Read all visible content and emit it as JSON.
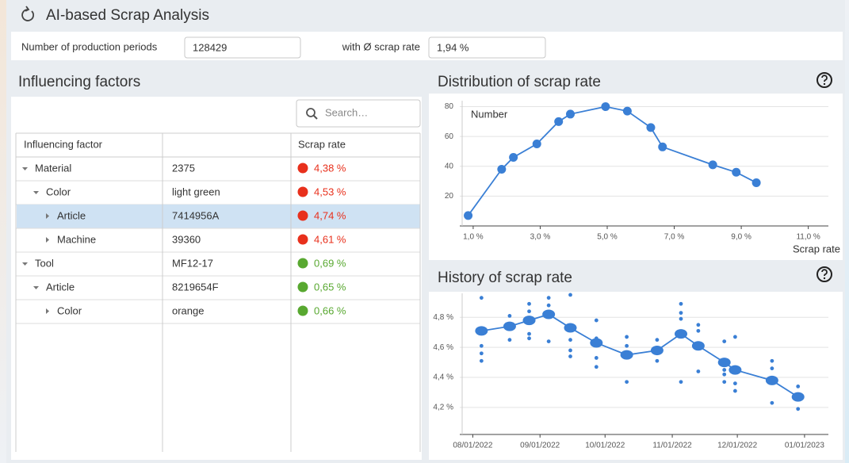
{
  "header": {
    "title": "AI-based Scrap Analysis"
  },
  "summary": {
    "periods_label": "Number of production periods",
    "periods_value": "128429",
    "rate_label": "with Ø scrap rate",
    "rate_value": "1,94 %"
  },
  "factors": {
    "title": "Influencing factors",
    "search_placeholder": "Search…",
    "columns": [
      "Influencing factor",
      "Scrap rate"
    ],
    "rows": [
      {
        "name": "Material",
        "value": "2375",
        "rate": "4,38 %",
        "depth": 0,
        "expanded": true,
        "selected": false,
        "dot_color": "#e8301c"
      },
      {
        "name": "Color",
        "value": "light green",
        "rate": "4,53 %",
        "depth": 1,
        "expanded": true,
        "selected": false,
        "dot_color": "#e8301c"
      },
      {
        "name": "Article",
        "value": "7414956A",
        "rate": "4,74 %",
        "depth": 2,
        "expanded": false,
        "selected": true,
        "dot_color": "#e8301c"
      },
      {
        "name": "Machine",
        "value": "39360",
        "rate": "4,61 %",
        "depth": 2,
        "expanded": false,
        "selected": false,
        "dot_color": "#e8301c"
      },
      {
        "name": "Tool",
        "value": "MF12-17",
        "rate": "0,69 %",
        "depth": 0,
        "expanded": true,
        "selected": false,
        "dot_color": "#58a830"
      },
      {
        "name": "Article",
        "value": "8219654F",
        "rate": "0,65 %",
        "depth": 1,
        "expanded": true,
        "selected": false,
        "dot_color": "#58a830"
      },
      {
        "name": "Color",
        "value": "orange",
        "rate": "0,66 %",
        "depth": 2,
        "expanded": false,
        "selected": false,
        "dot_color": "#58a830"
      }
    ]
  },
  "chart_data": [
    {
      "type": "line",
      "title": "Distribution of scrap rate",
      "x_label": "Scrap rate",
      "x": [
        0.85,
        1.85,
        2.2,
        2.9,
        3.55,
        3.9,
        4.95,
        5.6,
        6.3,
        6.65,
        8.15,
        8.85,
        9.45
      ],
      "series": [
        {
          "name": "Number",
          "color": "#3a7fd5",
          "values": [
            7,
            38,
            46,
            55,
            70,
            75,
            80,
            77,
            66,
            53,
            41,
            36,
            29
          ]
        }
      ],
      "xlim": [
        0.6,
        11.6
      ],
      "ylim": [
        0,
        84
      ],
      "xticks": [
        {
          "value": 1,
          "label": "1,0 %"
        },
        {
          "value": 3,
          "label": "3,0 %"
        },
        {
          "value": 5,
          "label": "5,0 %"
        },
        {
          "value": 7,
          "label": "7,0 %"
        },
        {
          "value": 9,
          "label": "9,0 %"
        },
        {
          "value": 11,
          "label": "11,0 %"
        }
      ],
      "yticks": [
        20,
        40,
        60,
        80
      ],
      "grid": true
    },
    {
      "type": "line",
      "title": "History of scrap rate",
      "x": [
        "08/05/2022",
        "08/18/2022",
        "08/27/2022",
        "09/05/2022",
        "09/15/2022",
        "09/27/2022",
        "10/11/2022",
        "10/25/2022",
        "11/05/2022",
        "11/13/2022",
        "11/25/2022",
        "11/30/2022",
        "12/17/2022",
        "12/29/2022"
      ],
      "series": [
        {
          "color": "#3a7fd5",
          "values": [
            4.71,
            4.74,
            4.78,
            4.82,
            4.73,
            4.63,
            4.55,
            4.58,
            4.69,
            4.61,
            4.5,
            4.45,
            4.38,
            4.27
          ]
        }
      ],
      "samples": {
        "color": "#3a7fd5",
        "x": [
          "08/05/2022",
          "08/05/2022",
          "08/05/2022",
          "08/05/2022",
          "08/18/2022",
          "08/18/2022",
          "08/27/2022",
          "08/27/2022",
          "08/27/2022",
          "08/27/2022",
          "09/05/2022",
          "09/05/2022",
          "09/05/2022",
          "09/15/2022",
          "09/15/2022",
          "09/15/2022",
          "09/15/2022",
          "09/27/2022",
          "09/27/2022",
          "09/27/2022",
          "09/27/2022",
          "10/11/2022",
          "10/11/2022",
          "10/11/2022",
          "10/11/2022",
          "10/25/2022",
          "10/25/2022",
          "10/25/2022",
          "11/05/2022",
          "11/05/2022",
          "11/05/2022",
          "11/05/2022",
          "11/13/2022",
          "11/13/2022",
          "11/13/2022",
          "11/25/2022",
          "11/25/2022",
          "11/25/2022",
          "11/25/2022",
          "11/30/2022",
          "11/30/2022",
          "11/30/2022",
          "12/17/2022",
          "12/17/2022",
          "12/17/2022",
          "12/29/2022",
          "12/29/2022"
        ],
        "values": [
          4.93,
          4.61,
          4.56,
          4.51,
          4.81,
          4.65,
          4.89,
          4.84,
          4.69,
          4.66,
          4.93,
          4.88,
          4.64,
          4.95,
          4.65,
          4.58,
          4.54,
          4.78,
          4.66,
          4.53,
          4.47,
          4.67,
          4.61,
          4.55,
          4.37,
          4.65,
          4.56,
          4.51,
          4.89,
          4.83,
          4.79,
          4.37,
          4.75,
          4.71,
          4.44,
          4.64,
          4.45,
          4.42,
          4.37,
          4.67,
          4.36,
          4.31,
          4.51,
          4.46,
          4.23,
          4.34,
          4.19
        ]
      },
      "xlim": [
        "07/26/2022",
        "01/12/2023"
      ],
      "ylim": [
        4.02,
        4.96
      ],
      "xticks": [
        "08/01/2022",
        "09/01/2022",
        "10/01/2022",
        "11/01/2022",
        "12/01/2022",
        "01/01/2023"
      ],
      "yticks": [
        {
          "value": 4.2,
          "label": "4,2 %"
        },
        {
          "value": 4.4,
          "label": "4,4 %"
        },
        {
          "value": 4.6,
          "label": "4,6 %"
        },
        {
          "value": 4.8,
          "label": "4,8 %"
        }
      ],
      "grid": true
    }
  ]
}
